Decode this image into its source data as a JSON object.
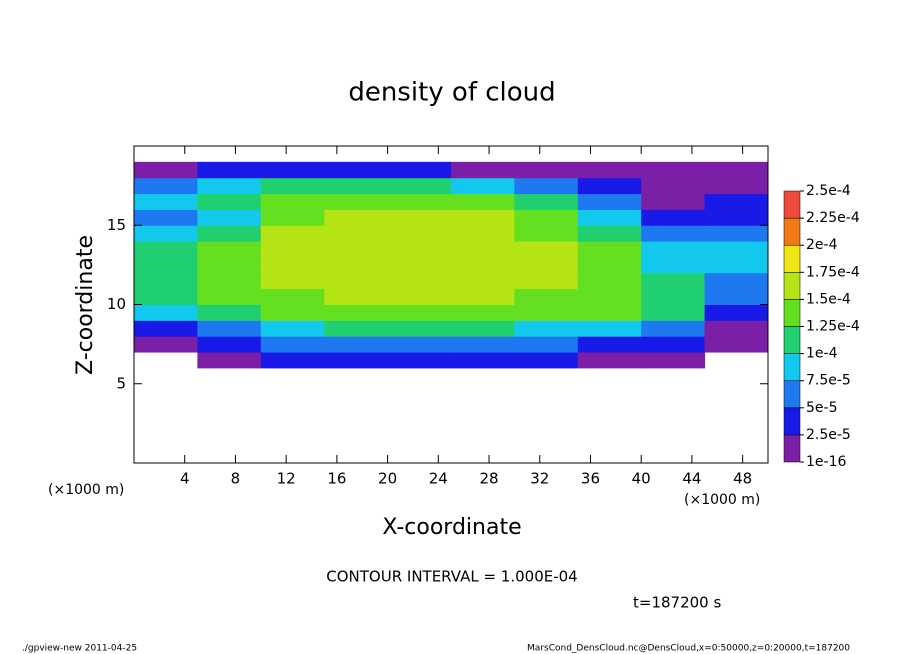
{
  "chart_data": {
    "type": "heatmap",
    "title": "density of cloud",
    "x_label": "X-coordinate",
    "y_label": "Z-coordinate",
    "x_unit_label": "(×1000 m)",
    "y_unit_label": "(×1000 m)",
    "contour_note": "CONTOUR INTERVAL = 1.000E-04",
    "time_note": "t=187200 s",
    "footer_left": "./gpview-new  2011-04-25",
    "footer_right": "MarsCond_DensCloud.nc@DensCloud,x=0:50000,z=0:20000,t=187200",
    "xlim": [
      0,
      50
    ],
    "ylim": [
      0,
      20
    ],
    "xticks": [
      4,
      8,
      12,
      16,
      20,
      24,
      28,
      32,
      36,
      40,
      44,
      48
    ],
    "yticks": [
      5,
      10,
      15
    ],
    "x": [
      2.5,
      7.5,
      12.5,
      17.5,
      22.5,
      27.5,
      32.5,
      37.5,
      42.5,
      47.5
    ],
    "y": [
      6.5,
      7.5,
      8.5,
      9.5,
      10.5,
      11.5,
      12.5,
      13.5,
      14.5,
      15.5,
      16.5,
      17.5,
      18.5
    ],
    "values": [
      [
        null,
        1e-05,
        3e-05,
        4e-05,
        4e-05,
        4e-05,
        3e-05,
        2e-05,
        1e-05,
        null
      ],
      [
        2e-05,
        4e-05,
        5e-05,
        6e-05,
        6e-05,
        6e-05,
        5e-05,
        4e-05,
        3e-05,
        2e-05
      ],
      [
        4e-05,
        6e-05,
        9e-05,
        0.0001,
        0.0001,
        0.0001,
        9e-05,
        8e-05,
        5e-05,
        2e-05
      ],
      [
        9e-05,
        0.00012,
        0.00013,
        0.000135,
        0.000135,
        0.000135,
        0.00013,
        0.000125,
        0.0001,
        4e-05
      ],
      [
        0.00011,
        0.00013,
        0.000145,
        0.00015,
        0.00015,
        0.00015,
        0.000145,
        0.000135,
        0.00012,
        6e-05
      ],
      [
        0.00012,
        0.00014,
        0.00015,
        0.000155,
        0.000155,
        0.000155,
        0.00015,
        0.00014,
        0.0001,
        7e-05
      ],
      [
        0.00011,
        0.00014,
        0.000155,
        0.00016,
        0.00016,
        0.00016,
        0.00015,
        0.00014,
        9e-05,
        8e-05
      ],
      [
        0.0001,
        0.00013,
        0.000155,
        0.00016,
        0.00016,
        0.00016,
        0.00015,
        0.00013,
        8e-05,
        9e-05
      ],
      [
        9e-05,
        0.00012,
        0.00015,
        0.000155,
        0.00016,
        0.000155,
        0.000145,
        0.00012,
        5e-05,
        6e-05
      ],
      [
        7e-05,
        9e-05,
        0.00014,
        0.00015,
        0.00015,
        0.00015,
        0.00013,
        9e-05,
        3e-05,
        4e-05
      ],
      [
        8e-05,
        0.0001,
        0.00013,
        0.00014,
        0.00014,
        0.00013,
        0.00011,
        6e-05,
        2e-05,
        3e-05
      ],
      [
        6e-05,
        8e-05,
        0.00011,
        0.00012,
        0.00011,
        9e-05,
        6e-05,
        3e-05,
        1e-05,
        2e-05
      ],
      [
        2e-05,
        3e-05,
        4e-05,
        3e-05,
        3e-05,
        2e-05,
        1e-05,
        1e-05,
        1e-05,
        1e-05
      ]
    ],
    "levels": [
      {
        "value": 1e-16,
        "label": "1e-16"
      },
      {
        "value": 2.5e-05,
        "label": "2.5e-5"
      },
      {
        "value": 5e-05,
        "label": "5e-5"
      },
      {
        "value": 7.5e-05,
        "label": "7.5e-5"
      },
      {
        "value": 0.0001,
        "label": "1e-4"
      },
      {
        "value": 0.000125,
        "label": "1.25e-4"
      },
      {
        "value": 0.00015,
        "label": "1.5e-4"
      },
      {
        "value": 0.000175,
        "label": "1.75e-4"
      },
      {
        "value": 0.0002,
        "label": "2e-4"
      },
      {
        "value": 0.000225,
        "label": "2.25e-4"
      },
      {
        "value": 0.00025,
        "label": "2.5e-4"
      }
    ],
    "colors": [
      "#7a1fa6",
      "#1a1ae8",
      "#1e78f0",
      "#12c8ec",
      "#20d070",
      "#64e020",
      "#b4e414",
      "#f0e414",
      "#f07a14",
      "#f04a3a"
    ]
  }
}
